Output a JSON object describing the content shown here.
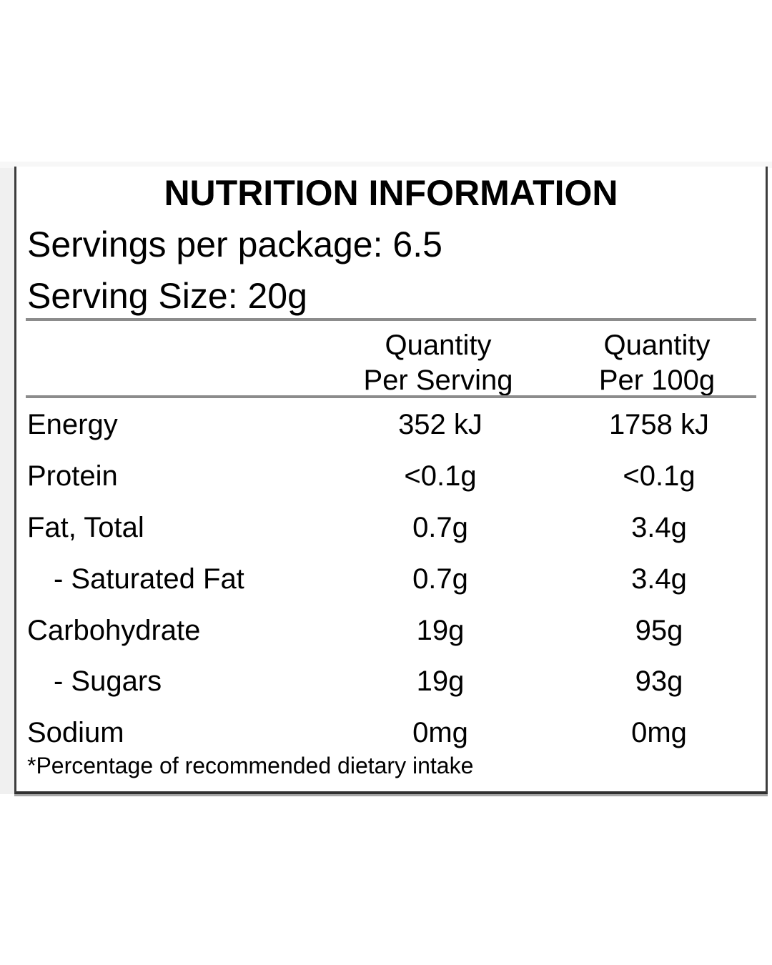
{
  "panel": {
    "title": "NUTRITION INFORMATION",
    "servings_line": "Servings per package: 6.5",
    "serving_size_line": "Serving Size: 20g",
    "columns": {
      "per_serving": {
        "line1": "Quantity",
        "line2": "Per Serving"
      },
      "per_100g": {
        "line1": "Quantity",
        "line2": "Per 100g"
      }
    },
    "rows": [
      {
        "label": "Energy",
        "per_serving": "352 kJ",
        "per_100g": "1758 kJ"
      },
      {
        "label": "Protein",
        "per_serving": "<0.1g",
        "per_100g": "<0.1g"
      },
      {
        "label": "Fat, Total",
        "per_serving": "0.7g",
        "per_100g": "3.4g"
      },
      {
        "label": "- Saturated Fat",
        "per_serving": "0.7g",
        "per_100g": "3.4g"
      },
      {
        "label": "Carbohydrate",
        "per_serving": "19g",
        "per_100g": "95g"
      },
      {
        "label": "- Sugars",
        "per_serving": "19g",
        "per_100g": "93g"
      },
      {
        "label": "Sodium",
        "per_serving": "0mg",
        "per_100g": "0mg"
      }
    ],
    "footnote": "*Percentage of recommended dietary intake"
  },
  "colors": {
    "text": "#000000",
    "panel_border": "#3d3d3d",
    "panel_bottom_border": "#303030",
    "rule": "#8c8c8c",
    "background": "#ffffff",
    "left_gutter": "#f0f0f0"
  }
}
